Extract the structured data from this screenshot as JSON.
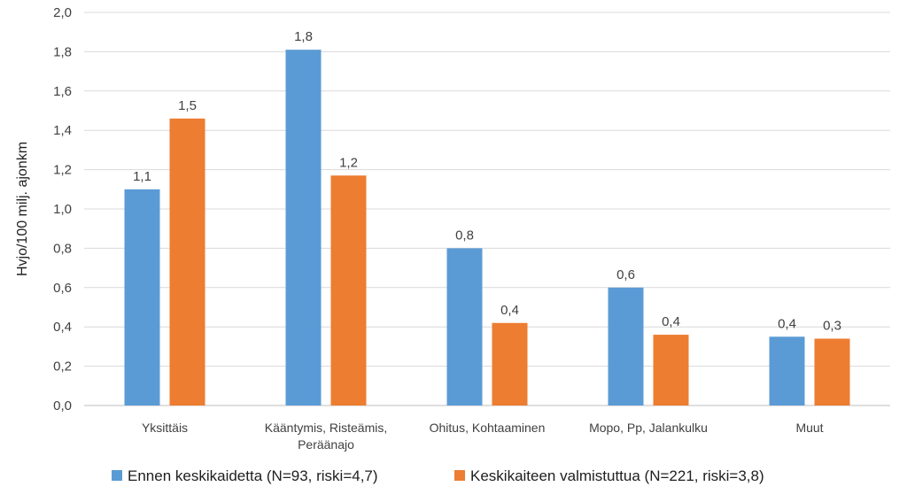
{
  "chart_data": {
    "type": "bar",
    "categories": [
      [
        "Yksittäis"
      ],
      [
        "Kääntymis, Risteämis,",
        "Peräänajo"
      ],
      [
        "Ohitus, Kohtaaminen"
      ],
      [
        "Mopo, Pp, Jalankulku"
      ],
      [
        "Muut"
      ]
    ],
    "series": [
      {
        "name": "Ennen keskikaidetta (N=93, riski=4,7)",
        "color": "#5b9bd5",
        "values": [
          1.1,
          1.81,
          0.8,
          0.6,
          0.35
        ],
        "labels": [
          "1,1",
          "1,8",
          "0,8",
          "0,6",
          "0,4"
        ]
      },
      {
        "name": "Keskikaiteen valmistuttua (N=221, riski=3,8)",
        "color": "#ed7d31",
        "values": [
          1.46,
          1.17,
          0.42,
          0.36,
          0.34
        ],
        "labels": [
          "1,5",
          "1,2",
          "0,4",
          "0,4",
          "0,3"
        ]
      }
    ],
    "ylabel": "Hvjo/100 milj. ajonkm",
    "ylim": [
      0,
      2.0
    ],
    "yticks": [
      "0,0",
      "0,2",
      "0,4",
      "0,6",
      "0,8",
      "1,0",
      "1,2",
      "1,4",
      "1,6",
      "1,8",
      "2,0"
    ],
    "grid": true,
    "legend": "bottom"
  }
}
